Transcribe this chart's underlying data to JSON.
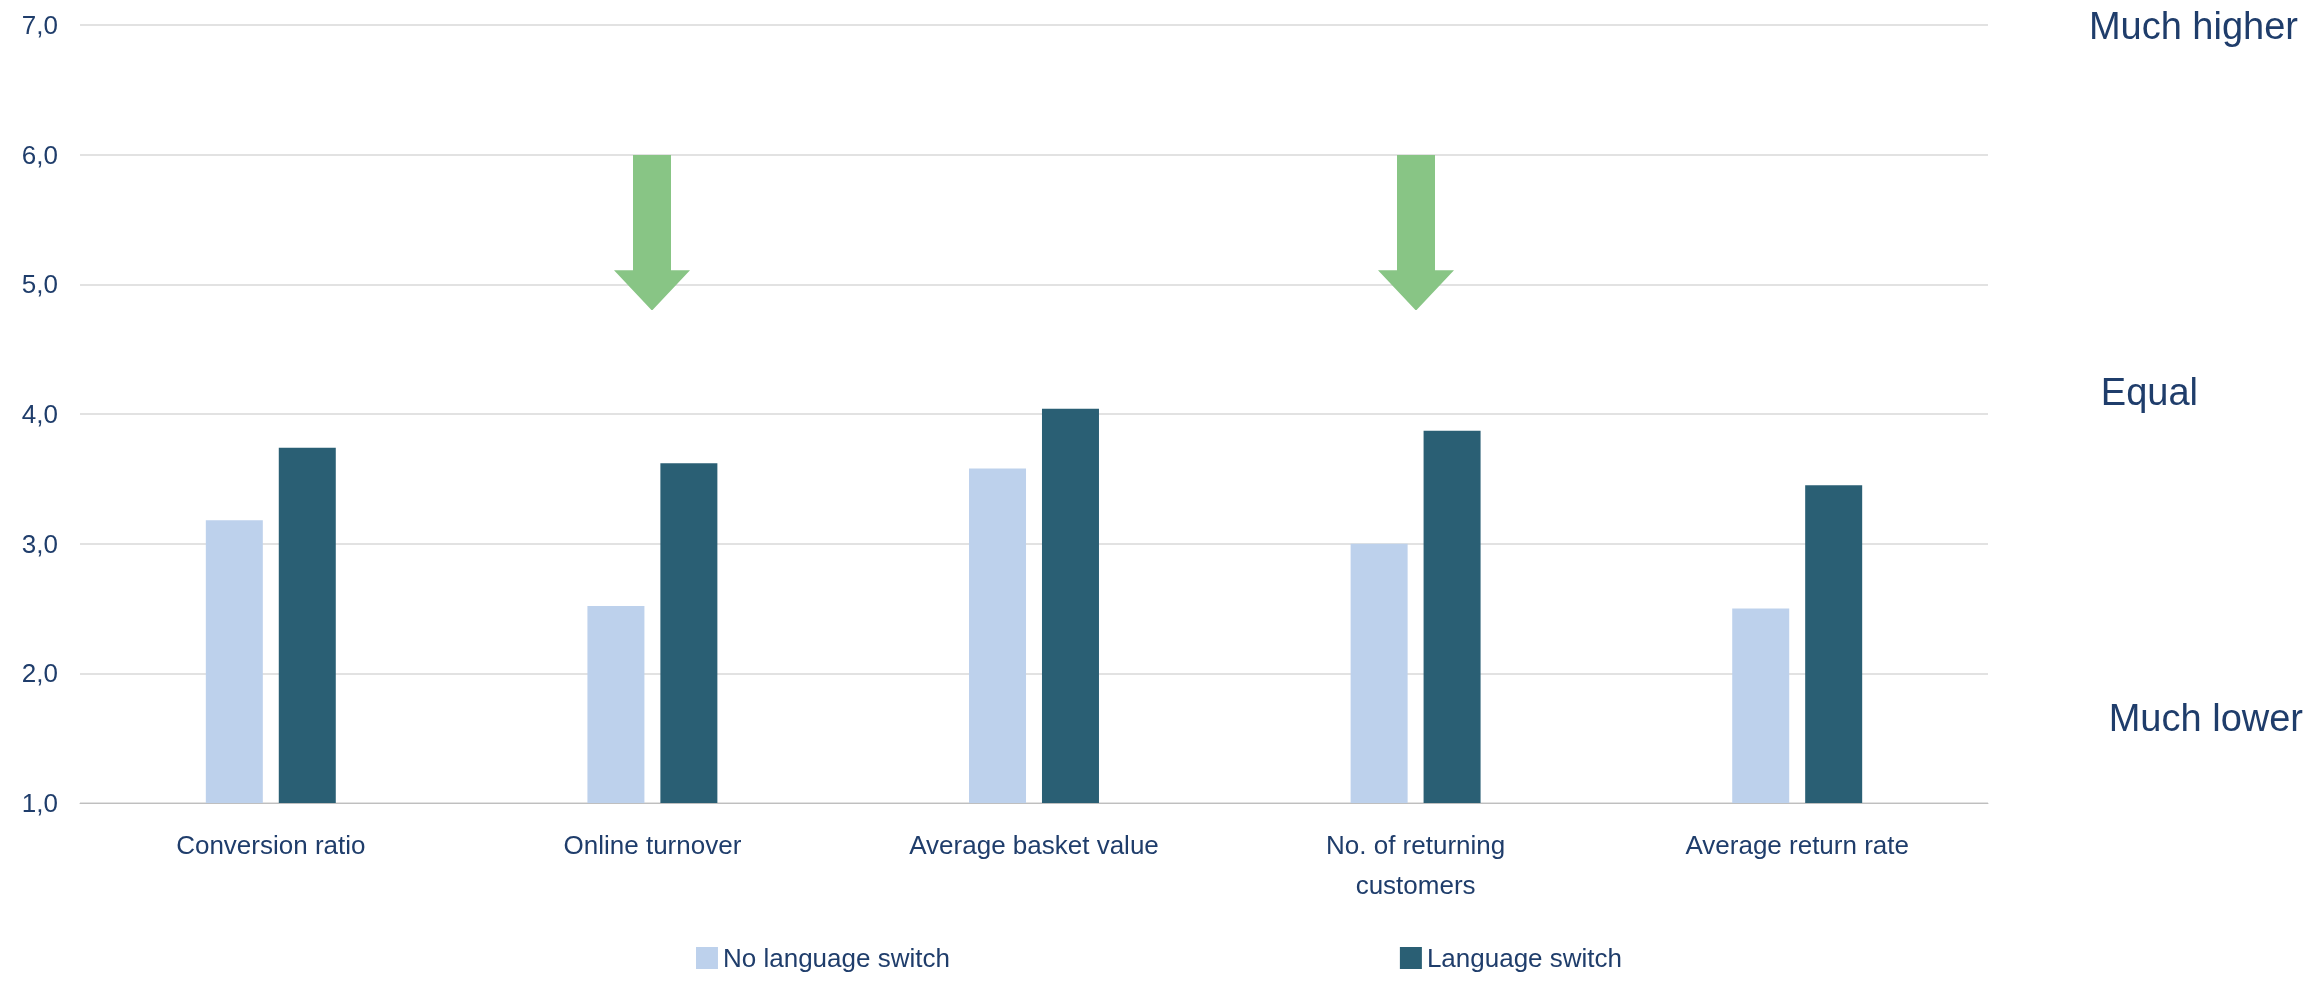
{
  "chart_data": {
    "type": "bar",
    "categories": [
      "Conversion ratio",
      "Online turnover",
      "Average basket value",
      "No. of returning customers",
      "Average return rate"
    ],
    "series": [
      {
        "name": "No language switch",
        "color": "#bdd1ec",
        "values": [
          3.18,
          2.52,
          3.58,
          3.0,
          2.5
        ]
      },
      {
        "name": "Language switch",
        "color": "#2a5f74",
        "values": [
          3.74,
          3.62,
          4.04,
          3.87,
          3.45
        ]
      }
    ],
    "ylim": [
      1,
      7
    ],
    "yticks": [
      {
        "value": 1,
        "label": "1,0"
      },
      {
        "value": 2,
        "label": "2,0"
      },
      {
        "value": 3,
        "label": "3,0"
      },
      {
        "value": 4,
        "label": "4,0"
      },
      {
        "value": 5,
        "label": "5,0"
      },
      {
        "value": 6,
        "label": "6,0"
      },
      {
        "value": 7,
        "label": "7,0"
      }
    ],
    "grid": "y",
    "legend": "bottom",
    "annotations": [
      "Much higher",
      "Equal",
      "Much lower"
    ]
  }
}
